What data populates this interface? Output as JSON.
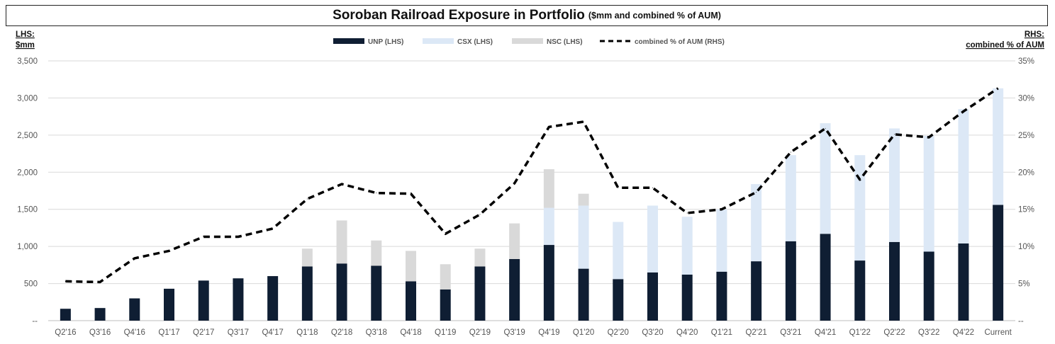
{
  "title": {
    "main": "Soroban Railroad Exposure in Portfolio",
    "sub": "($mm and combined % of AUM)"
  },
  "chart_data": {
    "type": "bar",
    "stacked": true,
    "lhs_label": [
      "LHS:",
      "$mm"
    ],
    "rhs_label": [
      "RHS:",
      "combined % of AUM"
    ],
    "y_left": {
      "range": [
        0,
        3500
      ],
      "ticks": [
        0,
        500,
        1000,
        1500,
        2000,
        2500,
        3000,
        3500
      ],
      "tick_labels": [
        "--",
        "500",
        "1,000",
        "1,500",
        "2,000",
        "2,500",
        "3,000",
        "3,500"
      ]
    },
    "y_right": {
      "range": [
        0,
        35
      ],
      "ticks": [
        0,
        5,
        10,
        15,
        20,
        25,
        30,
        35
      ],
      "tick_labels": [
        "--",
        "5%",
        "10%",
        "15%",
        "20%",
        "25%",
        "30%",
        "35%"
      ]
    },
    "grid": true,
    "legend_position": "top-center",
    "categories": [
      "Q2'16",
      "Q3'16",
      "Q4'16",
      "Q1'17",
      "Q2'17",
      "Q3'17",
      "Q4'17",
      "Q1'18",
      "Q2'18",
      "Q3'18",
      "Q4'18",
      "Q1'19",
      "Q2'19",
      "Q3'19",
      "Q4'19",
      "Q1'20",
      "Q2'20",
      "Q3'20",
      "Q4'20",
      "Q1'21",
      "Q2'21",
      "Q3'21",
      "Q4'21",
      "Q1'22",
      "Q2'22",
      "Q3'22",
      "Q4'22",
      "Current"
    ],
    "series": [
      {
        "name": "UNP (LHS)",
        "kind": "bar",
        "axis": "left",
        "color": "#0f1e33",
        "values": [
          160,
          170,
          300,
          430,
          540,
          570,
          600,
          730,
          770,
          740,
          530,
          420,
          730,
          830,
          1020,
          700,
          560,
          650,
          620,
          660,
          800,
          1070,
          1170,
          810,
          1060,
          930,
          1040,
          1560
        ]
      },
      {
        "name": "CSX (LHS)",
        "kind": "bar",
        "axis": "left",
        "color": "#dce8f6",
        "values": [
          0,
          0,
          0,
          0,
          0,
          0,
          0,
          0,
          0,
          0,
          0,
          0,
          0,
          0,
          500,
          850,
          770,
          900,
          780,
          840,
          1040,
          1160,
          1490,
          1420,
          1530,
          1560,
          1810,
          1570
        ]
      },
      {
        "name": "NSC (LHS)",
        "kind": "bar",
        "axis": "left",
        "color": "#d9d9d9",
        "values": [
          0,
          0,
          0,
          0,
          0,
          0,
          0,
          240,
          580,
          340,
          410,
          340,
          240,
          480,
          520,
          160,
          0,
          0,
          0,
          0,
          0,
          0,
          0,
          0,
          0,
          0,
          0,
          0
        ]
      },
      {
        "name": "combined % of AUM (RHS)",
        "kind": "line",
        "axis": "right",
        "color": "#000000",
        "values": [
          5.3,
          5.2,
          8.4,
          9.4,
          11.3,
          11.3,
          12.4,
          16.4,
          18.4,
          17.2,
          17.1,
          11.7,
          14.3,
          18.5,
          26.1,
          26.8,
          17.9,
          17.9,
          14.5,
          15.0,
          17.3,
          22.7,
          25.9,
          19.0,
          25.1,
          24.7,
          28.2,
          31.3
        ]
      }
    ]
  }
}
